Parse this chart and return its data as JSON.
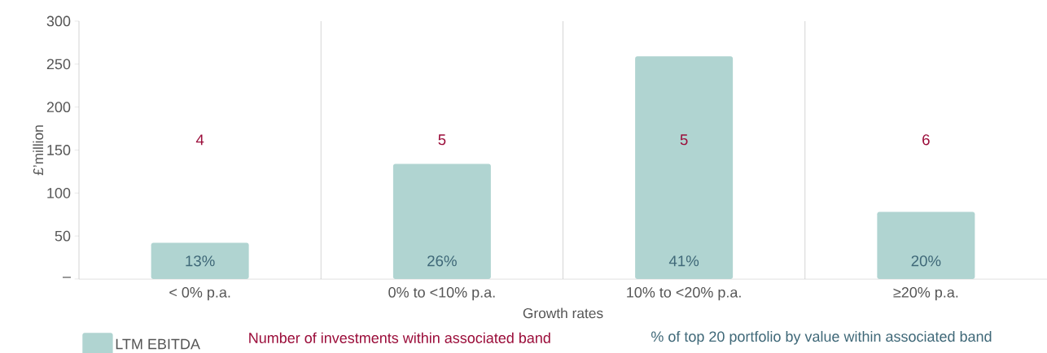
{
  "chart_data": {
    "type": "bar",
    "categories": [
      "< 0% p.a.",
      "0% to <10% p.a.",
      "10% to <20% p.a.",
      "≥20% p.a."
    ],
    "series": [
      {
        "name": "LTM EBITDA",
        "color": "#b0d4d1",
        "values": [
          42,
          134,
          259,
          78
        ]
      }
    ],
    "xlabel": "Growth rates",
    "ylabel": "£’million",
    "ylim": [
      0,
      300
    ],
    "yticks": [
      {
        "value": 0,
        "label": "–"
      },
      50,
      100,
      150,
      200,
      250,
      300
    ],
    "legend": "bottom",
    "annotations": [
      "4",
      "5",
      "5",
      "6",
      "13%",
      "26%",
      "41%",
      "20%",
      "Number of investments within associated band",
      "% of top 20 portfolio by value within associated band"
    ]
  }
}
